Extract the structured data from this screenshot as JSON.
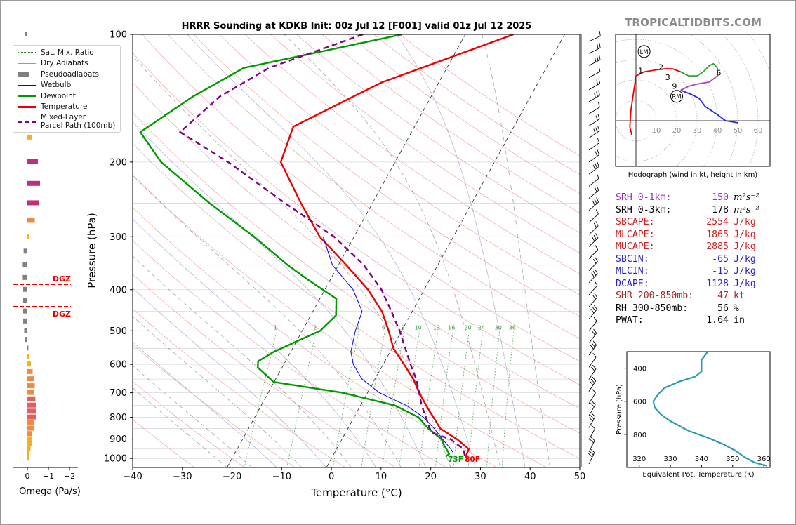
{
  "brand": "TROPICALTIDBITS.COM",
  "chart_data": [
    {
      "type": "line",
      "subtype": "skew-T log-P sounding",
      "title": "HRRR Sounding at KDKB Init: 00z Jul 12 [F001] valid 01z Jul 12 2025",
      "xlabel": "Temperature (°C)",
      "ylabel": "Pressure (hPa)",
      "xlim": [
        -40,
        50
      ],
      "ylim": [
        1050,
        100
      ],
      "y_scale": "log",
      "x_ticks": [
        "−40",
        "−30",
        "−20",
        "−10",
        "0",
        "10",
        "20",
        "30",
        "40",
        "50"
      ],
      "y_ticks": [
        "100",
        "200",
        "300",
        "400",
        "500",
        "600",
        "700",
        "800",
        "900",
        "1000"
      ],
      "legend_position": "upper-left",
      "legend": [
        {
          "label": "Sat. Mix. Ratio",
          "color": "#2a7a2a",
          "style": "dotted"
        },
        {
          "label": "Dry Adiabats",
          "color": "#e07a7a",
          "style": "solid-thin"
        },
        {
          "label": "Pseudoadiabats",
          "color": "#7f7f7f",
          "style": "dashed"
        },
        {
          "label": "Wetbulb",
          "color": "#0000ee",
          "style": "solid-thin"
        },
        {
          "label": "Dewpoint",
          "color": "#009900",
          "style": "solid-thick"
        },
        {
          "label": "Temperature",
          "color": "#ee0000",
          "style": "solid-thick"
        },
        {
          "label": "Mixed-Layer Parcel Path (100mb)",
          "label_lines": [
            "Mixed-Layer",
            "Parcel Path (100mb)"
          ],
          "color": "#800080",
          "style": "dashed-thick"
        }
      ],
      "mixing_ratio_labels": [
        "1",
        "2",
        "4",
        "6",
        "8",
        "10",
        "13",
        "16",
        "20",
        "24",
        "30",
        "36"
      ],
      "mixing_ratio_values": [
        1,
        2,
        4,
        6,
        8,
        10,
        13,
        16,
        20,
        24,
        30,
        36
      ],
      "surface_labels": {
        "dewpoint": "73F",
        "temperature": "80F"
      },
      "series": [
        {
          "name": "Temperature",
          "color": "#ee0000",
          "points": [
            [
              100,
              -10.3
            ],
            [
              130,
              -31.6
            ],
            [
              165,
              -44.4
            ],
            [
              200,
              -43.0
            ],
            [
              250,
              -34.4
            ],
            [
              300,
              -26.9
            ],
            [
              350,
              -18.4
            ],
            [
              400,
              -11.3
            ],
            [
              450,
              -6.1
            ],
            [
              500,
              -2.6
            ],
            [
              550,
              0.3
            ],
            [
              600,
              4.2
            ],
            [
              650,
              7.7
            ],
            [
              700,
              10.4
            ],
            [
              750,
              13.2
            ],
            [
              800,
              16.0
            ],
            [
              850,
              18.6
            ],
            [
              900,
              23.1
            ],
            [
              950,
              26.6
            ],
            [
              985,
              26.8
            ],
            [
              990,
              26.7
            ]
          ]
        },
        {
          "name": "Dewpoint",
          "color": "#009900",
          "points": [
            [
              100,
              -32.7
            ],
            [
              120,
              -60.9
            ],
            [
              140,
              -67.9
            ],
            [
              170,
              -74.6
            ],
            [
              200,
              -67.1
            ],
            [
              250,
              -52.8
            ],
            [
              300,
              -40.1
            ],
            [
              350,
              -30.2
            ],
            [
              380,
              -24.3
            ],
            [
              420,
              -16.7
            ],
            [
              460,
              -14.9
            ],
            [
              500,
              -16.4
            ],
            [
              560,
              -23.4
            ],
            [
              590,
              -25.5
            ],
            [
              610,
              -24.9
            ],
            [
              660,
              -20.1
            ],
            [
              700,
              -5.0
            ],
            [
              750,
              6.9
            ],
            [
              800,
              13.0
            ],
            [
              850,
              16.2
            ],
            [
              900,
              20.0
            ],
            [
              930,
              21.2
            ],
            [
              950,
              22.1
            ],
            [
              975,
              23.2
            ],
            [
              990,
              22.8
            ]
          ]
        },
        {
          "name": "Wetbulb",
          "color": "#0000ee",
          "points": [
            [
              300,
              -26.2
            ],
            [
              350,
              -21.2
            ],
            [
              400,
              -14.3
            ],
            [
              450,
              -10.1
            ],
            [
              500,
              -9.3
            ],
            [
              560,
              -7.9
            ],
            [
              600,
              -6.0
            ],
            [
              650,
              -2.6
            ],
            [
              700,
              2.4
            ],
            [
              750,
              9.2
            ],
            [
              800,
              14.0
            ],
            [
              850,
              17.4
            ],
            [
              900,
              20.2
            ],
            [
              950,
              23.0
            ],
            [
              970,
              23.9
            ]
          ]
        },
        {
          "name": "Mixed-Layer Parcel Path (100mb)",
          "color": "#800080",
          "points": [
            [
              100,
              -40.6
            ],
            [
              120,
              -55.8
            ],
            [
              140,
              -62.5
            ],
            [
              170,
              -66.6
            ],
            [
              200,
              -53.6
            ],
            [
              250,
              -37.6
            ],
            [
              300,
              -24.0
            ],
            [
              350,
              -14.9
            ],
            [
              400,
              -8.6
            ],
            [
              450,
              -4.2
            ],
            [
              500,
              -0.4
            ],
            [
              550,
              2.7
            ],
            [
              600,
              5.5
            ],
            [
              650,
              8.3
            ],
            [
              700,
              10.4
            ],
            [
              750,
              12.3
            ],
            [
              800,
              14.5
            ],
            [
              850,
              16.5
            ],
            [
              870,
              17.4
            ],
            [
              900,
              21.8
            ],
            [
              950,
              25.5
            ],
            [
              990,
              26.7
            ]
          ]
        }
      ],
      "wind_barbs": "right-margin"
    },
    {
      "type": "bar",
      "orientation": "horizontal",
      "xlabel": "Omega (Pa/s)",
      "x_ticks": [
        "0",
        "−1",
        "−2"
      ],
      "xlim": [
        0.4,
        -2.4
      ],
      "annotations": [
        "DGZ",
        "DGZ"
      ],
      "dgz_bounds_hpa": [
        385,
        435
      ],
      "levels_hpa": [
        100,
        150,
        175,
        200,
        225,
        250,
        275,
        300,
        325,
        350,
        375,
        400,
        425,
        450,
        475,
        500,
        525,
        550,
        575,
        600,
        625,
        650,
        675,
        700,
        725,
        750,
        775,
        800,
        825,
        850,
        875,
        900,
        925,
        950,
        975,
        1000
      ],
      "values": [
        0.1,
        0.18,
        -0.2,
        -0.5,
        -0.6,
        -0.55,
        -0.35,
        -0.05,
        0.18,
        0.22,
        0.22,
        0.2,
        0.2,
        0.2,
        0.2,
        0.15,
        0.1,
        0.02,
        -0.05,
        -0.17,
        -0.25,
        -0.3,
        -0.35,
        -0.33,
        -0.38,
        -0.4,
        -0.4,
        -0.4,
        -0.33,
        -0.3,
        -0.23,
        -0.2,
        -0.2,
        -0.15,
        -0.08,
        -0.04
      ]
    },
    {
      "type": "line",
      "subtype": "hodograph",
      "xlabel": "Hodograph (wind in kt, height in km)",
      "ring_labels": [
        "10",
        "20",
        "30",
        "40",
        "50",
        "60"
      ],
      "height_labels": [
        "1",
        "2",
        "3",
        "6",
        "9"
      ],
      "markers": [
        "LM",
        "RM"
      ],
      "segments": [
        {
          "name": "0-3 km",
          "color": "#ee0000",
          "points": [
            [
              -2,
              -7
            ],
            [
              -3,
              -3
            ],
            [
              -2.5,
              5
            ],
            [
              0,
              22
            ],
            [
              4,
              24
            ],
            [
              10,
              25
            ],
            [
              14,
              25.5
            ],
            [
              18,
              25.5
            ],
            [
              22,
              24
            ]
          ]
        },
        {
          "name": "3-6 km",
          "color": "#30a030",
          "points": [
            [
              22,
              24
            ],
            [
              26,
              22
            ],
            [
              30,
              22
            ],
            [
              33,
              24
            ],
            [
              36,
              27
            ],
            [
              38,
              28
            ],
            [
              40,
              26
            ]
          ]
        },
        {
          "name": "6-9 km",
          "color": "#b040c0",
          "points": [
            [
              40,
              26
            ],
            [
              40,
              22
            ],
            [
              36,
              19
            ],
            [
              30,
              18
            ],
            [
              26,
              17
            ],
            [
              22,
              15
            ]
          ]
        },
        {
          "name": "9+ km",
          "color": "#2020ee",
          "points": [
            [
              22,
              15
            ],
            [
              27,
              13
            ],
            [
              31,
              11
            ],
            [
              34,
              7
            ],
            [
              40,
              3
            ],
            [
              44,
              0
            ],
            [
              50,
              -1
            ]
          ]
        }
      ]
    },
    {
      "type": "line",
      "subtype": "equivalent potential temperature profile",
      "xlabel": "Equivalent Pot. Temperature (K)",
      "ylabel": "Pressure (hPa)",
      "xlim": [
        316,
        362
      ],
      "ylim": [
        1000,
        300
      ],
      "x_ticks": [
        "320",
        "330",
        "340",
        "350",
        "360"
      ],
      "y_ticks": [
        "400",
        "600",
        "800"
      ],
      "color": "#2b9bb0",
      "points": [
        [
          300,
          342
        ],
        [
          350,
          340
        ],
        [
          420,
          340
        ],
        [
          450,
          338
        ],
        [
          480,
          333
        ],
        [
          520,
          328
        ],
        [
          560,
          326
        ],
        [
          600,
          324.5
        ],
        [
          640,
          325
        ],
        [
          680,
          327
        ],
        [
          720,
          330
        ],
        [
          780,
          336
        ],
        [
          820,
          342
        ],
        [
          860,
          347
        ],
        [
          900,
          351
        ],
        [
          940,
          354
        ],
        [
          970,
          357
        ],
        [
          985,
          360
        ],
        [
          990,
          361
        ]
      ]
    }
  ],
  "stats": [
    {
      "label": "SRH 0-1km:",
      "value": "150",
      "unit": "m²s⁻²",
      "color": "#9b30c0"
    },
    {
      "label": "SRH 0-3km:",
      "value": "178",
      "unit": "m²s⁻²",
      "color": "#000000"
    },
    {
      "label": "SBCAPE:",
      "value": "2554",
      "unit": "J/kg",
      "color": "#cc2222"
    },
    {
      "label": "MLCAPE:",
      "value": "1865",
      "unit": "J/kg",
      "color": "#cc2222"
    },
    {
      "label": "MUCAPE:",
      "value": "2885",
      "unit": "J/kg",
      "color": "#cc2222"
    },
    {
      "label": "SBCIN:",
      "value": "-65",
      "unit": "J/kg",
      "color": "#2222cc"
    },
    {
      "label": "MLCIN:",
      "value": "-15",
      "unit": "J/kg",
      "color": "#2222cc"
    },
    {
      "label": "DCAPE:",
      "value": "1128",
      "unit": "J/kg",
      "color": "#2222cc"
    },
    {
      "label": "SHR 200-850mb:",
      "value": "47",
      "unit": "kt",
      "color": "#a52a2a"
    },
    {
      "label": "RH 300-850mb:",
      "value": "56",
      "unit": "%",
      "color": "#000000"
    },
    {
      "label": "PWAT:",
      "value": "1.64",
      "unit": "in",
      "color": "#000000"
    }
  ]
}
